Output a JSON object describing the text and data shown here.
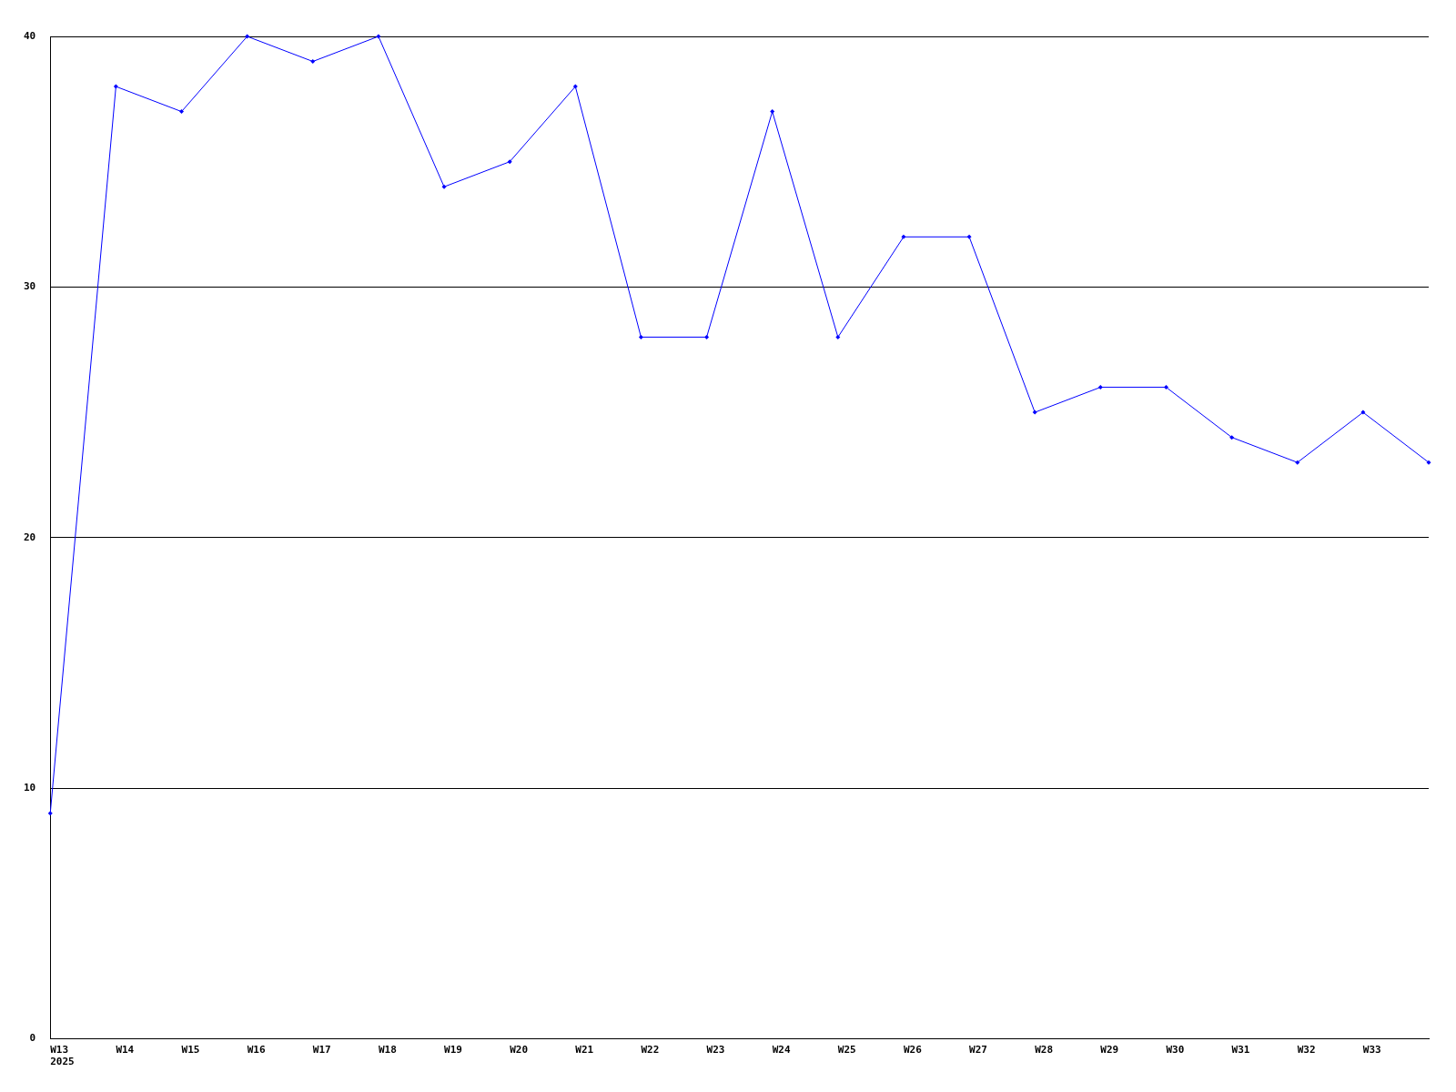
{
  "chart_data": {
    "type": "line",
    "categories": [
      "W13\n2025",
      "W14",
      "W15",
      "W16",
      "W17",
      "W18",
      "W19",
      "W20",
      "W21",
      "W22",
      "W23",
      "W24",
      "W25",
      "W26",
      "W27",
      "W28",
      "W29",
      "W30",
      "W31",
      "W32",
      "W33",
      null
    ],
    "series": [
      {
        "color": "#0000ff",
        "values": [
          9,
          38,
          37,
          40,
          39,
          40,
          34,
          35,
          38,
          28,
          28,
          37,
          28,
          32,
          32,
          25,
          26,
          26,
          24,
          23,
          25,
          23
        ]
      }
    ],
    "ylim": [
      0,
      40
    ],
    "yticks": [
      0,
      10,
      20,
      30,
      40
    ],
    "grid": "y",
    "marker": "diamond",
    "line_style": "solid",
    "legend": false
  }
}
